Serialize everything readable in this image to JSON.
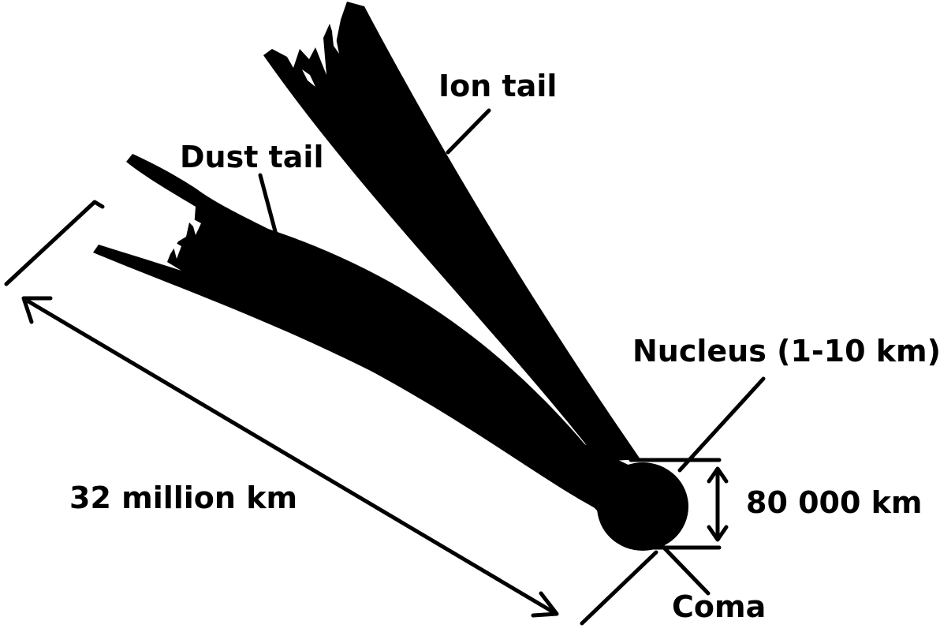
{
  "labels": {
    "ion_tail": "Ion tail",
    "dust_tail": "Dust tail",
    "nucleus": "Nucleus (1-10 km)",
    "coma_size": "80 000 km",
    "coma": "Coma",
    "tail_length": "32 million km"
  },
  "colors": {
    "ink": "#000000",
    "background": "#ffffff"
  }
}
